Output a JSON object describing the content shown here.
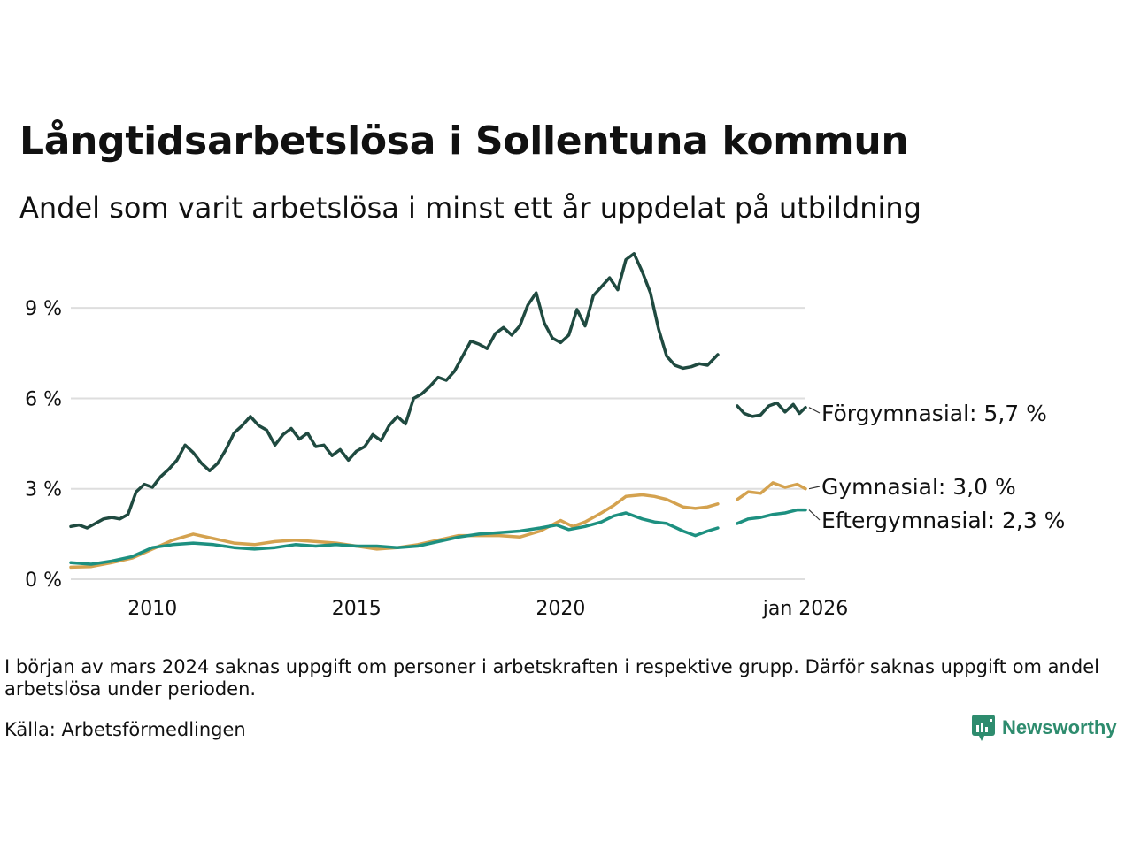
{
  "title": "Långtidsarbetslösa i Sollentuna kommun",
  "subtitle": "Andel som varit arbetslösa i minst ett år uppdelat på utbildning",
  "note": "I början av mars 2024 saknas uppgift om personer i arbetskraften i respektive grupp. Därför saknas uppgift om andel arbetslösa under perioden.",
  "source": "Källa: Arbetsförmedlingen",
  "logo": "Newsworthy",
  "chart_data": {
    "type": "line",
    "title": "Långtidsarbetslösa i Sollentuna kommun",
    "xlabel": "",
    "ylabel": "",
    "x_unit": "decimal year",
    "xlim": [
      2008.0,
      2026.0
    ],
    "ylim": [
      0,
      11
    ],
    "y_ticks": [
      0,
      3,
      6,
      9
    ],
    "y_tick_labels": [
      "0 %",
      "3 %",
      "6 %",
      "9 %"
    ],
    "x_ticks": [
      2010,
      2015,
      2020,
      2026
    ],
    "x_tick_labels": [
      "2010",
      "2015",
      "2020",
      "jan 2026"
    ],
    "gap": [
      2024.0,
      2024.33
    ],
    "series": [
      {
        "name": "Förgymnasial",
        "label": "Förgymnasial: 5,7 %",
        "color": "#1f4a40",
        "x": [
          2008.0,
          2008.2,
          2008.4,
          2008.6,
          2008.8,
          2009.0,
          2009.2,
          2009.4,
          2009.6,
          2009.8,
          2010.0,
          2010.2,
          2010.4,
          2010.6,
          2010.8,
          2011.0,
          2011.2,
          2011.4,
          2011.6,
          2011.8,
          2012.0,
          2012.2,
          2012.4,
          2012.6,
          2012.8,
          2013.0,
          2013.2,
          2013.4,
          2013.6,
          2013.8,
          2014.0,
          2014.2,
          2014.4,
          2014.6,
          2014.8,
          2015.0,
          2015.2,
          2015.4,
          2015.6,
          2015.8,
          2016.0,
          2016.2,
          2016.4,
          2016.6,
          2016.8,
          2017.0,
          2017.2,
          2017.4,
          2017.6,
          2017.8,
          2018.0,
          2018.2,
          2018.4,
          2018.6,
          2018.8,
          2019.0,
          2019.2,
          2019.4,
          2019.6,
          2019.8,
          2020.0,
          2020.2,
          2020.4,
          2020.6,
          2020.8,
          2021.0,
          2021.2,
          2021.4,
          2021.6,
          2021.8,
          2022.0,
          2022.2,
          2022.4,
          2022.6,
          2022.8,
          2023.0,
          2023.2,
          2023.4,
          2023.6,
          2023.85,
          2024.33,
          2024.5,
          2024.7,
          2024.9,
          2025.1,
          2025.3,
          2025.5,
          2025.7,
          2025.85,
          2026.0
        ],
        "values": [
          1.75,
          1.8,
          1.7,
          1.85,
          2.0,
          2.05,
          2.0,
          2.15,
          2.9,
          3.15,
          3.05,
          3.4,
          3.65,
          3.95,
          4.45,
          4.2,
          3.85,
          3.6,
          3.85,
          4.3,
          4.85,
          5.1,
          5.4,
          5.1,
          4.95,
          4.45,
          4.8,
          5.0,
          4.65,
          4.85,
          4.4,
          4.45,
          4.1,
          4.3,
          3.95,
          4.25,
          4.4,
          4.8,
          4.6,
          5.1,
          5.4,
          5.15,
          6.0,
          6.15,
          6.4,
          6.7,
          6.6,
          6.9,
          7.4,
          7.9,
          7.8,
          7.65,
          8.15,
          8.35,
          8.1,
          8.4,
          9.1,
          9.5,
          8.5,
          8.0,
          7.85,
          8.1,
          8.95,
          8.4,
          9.4,
          9.7,
          10.0,
          9.6,
          10.6,
          10.8,
          10.2,
          9.5,
          8.3,
          7.4,
          7.1,
          7.0,
          7.05,
          7.15,
          7.1,
          7.45,
          5.75,
          5.5,
          5.4,
          5.45,
          5.75,
          5.85,
          5.55,
          5.8,
          5.5,
          5.7
        ]
      },
      {
        "name": "Gymnasial",
        "label": "Gymnasial: 3,0 %",
        "color": "#d4a24f",
        "x": [
          2008.0,
          2008.5,
          2009.0,
          2009.5,
          2010.0,
          2010.5,
          2011.0,
          2011.5,
          2012.0,
          2012.5,
          2013.0,
          2013.5,
          2014.0,
          2014.5,
          2015.0,
          2015.5,
          2016.0,
          2016.5,
          2017.0,
          2017.5,
          2018.0,
          2018.5,
          2019.0,
          2019.5,
          2020.0,
          2020.3,
          2020.6,
          2021.0,
          2021.3,
          2021.6,
          2022.0,
          2022.3,
          2022.6,
          2023.0,
          2023.3,
          2023.6,
          2023.85,
          2024.33,
          2024.6,
          2024.9,
          2025.2,
          2025.5,
          2025.8,
          2026.0
        ],
        "values": [
          0.4,
          0.42,
          0.55,
          0.7,
          1.0,
          1.3,
          1.5,
          1.35,
          1.2,
          1.15,
          1.25,
          1.3,
          1.25,
          1.2,
          1.1,
          1.0,
          1.05,
          1.15,
          1.3,
          1.45,
          1.45,
          1.45,
          1.4,
          1.6,
          1.95,
          1.75,
          1.9,
          2.2,
          2.45,
          2.75,
          2.8,
          2.75,
          2.65,
          2.4,
          2.35,
          2.4,
          2.5,
          2.65,
          2.9,
          2.85,
          3.2,
          3.05,
          3.15,
          3.0
        ]
      },
      {
        "name": "Eftergymnasial",
        "label": "Eftergymnasial: 2,3 %",
        "color": "#1d9080",
        "x": [
          2008.0,
          2008.5,
          2009.0,
          2009.5,
          2010.0,
          2010.5,
          2011.0,
          2011.5,
          2012.0,
          2012.5,
          2013.0,
          2013.5,
          2014.0,
          2014.5,
          2015.0,
          2015.5,
          2016.0,
          2016.5,
          2017.0,
          2017.5,
          2018.0,
          2018.5,
          2019.0,
          2019.5,
          2019.9,
          2020.2,
          2020.6,
          2021.0,
          2021.3,
          2021.6,
          2022.0,
          2022.3,
          2022.6,
          2023.0,
          2023.3,
          2023.6,
          2023.85,
          2024.33,
          2024.6,
          2024.9,
          2025.2,
          2025.5,
          2025.8,
          2026.0
        ],
        "values": [
          0.55,
          0.5,
          0.6,
          0.75,
          1.05,
          1.15,
          1.2,
          1.15,
          1.05,
          1.0,
          1.05,
          1.15,
          1.1,
          1.15,
          1.1,
          1.1,
          1.05,
          1.1,
          1.25,
          1.4,
          1.5,
          1.55,
          1.6,
          1.7,
          1.8,
          1.65,
          1.75,
          1.9,
          2.1,
          2.2,
          2.0,
          1.9,
          1.85,
          1.6,
          1.45,
          1.6,
          1.7,
          1.85,
          2.0,
          2.05,
          2.15,
          2.2,
          2.3,
          2.3
        ]
      }
    ]
  }
}
